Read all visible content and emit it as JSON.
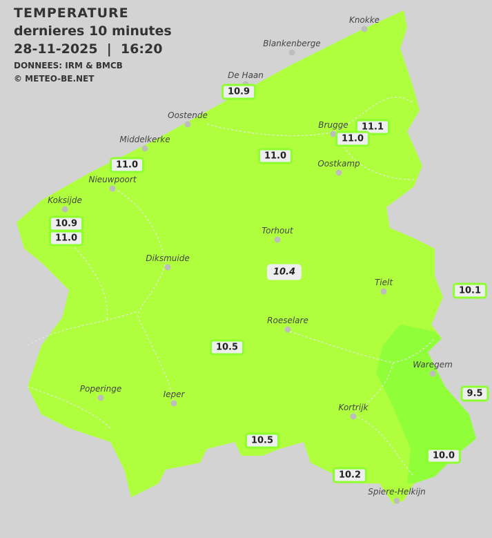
{
  "header": {
    "title": "TEMPERATURE",
    "subtitle": "dernieres 10 minutes",
    "datetime": "28-11-2025  |  16:20",
    "source": "DONNEES: IRM & BMCB",
    "copyright": "© METEO-BE.NET"
  },
  "colors": {
    "background": "#d3d3d3",
    "region_11": "#b0ff3e",
    "region_10": "#90ff3a",
    "label_border": "#8dff2f"
  },
  "cities": [
    {
      "name": "Knokke"
    },
    {
      "name": "Blankenberge"
    },
    {
      "name": "De Haan"
    },
    {
      "name": "Oostende"
    },
    {
      "name": "Brugge"
    },
    {
      "name": "Middelkerke"
    },
    {
      "name": "Oostkamp"
    },
    {
      "name": "Nieuwpoort"
    },
    {
      "name": "Koksijde"
    },
    {
      "name": "Torhout"
    },
    {
      "name": "Diksmuide"
    },
    {
      "name": "Tielt"
    },
    {
      "name": "Roeselare"
    },
    {
      "name": "Waregem"
    },
    {
      "name": "Poperinge"
    },
    {
      "name": "Ieper"
    },
    {
      "name": "Kortrijk"
    },
    {
      "name": "Spiere-Helkijn"
    }
  ],
  "readings": [
    "10.9",
    "11.1",
    "11.0",
    "11.0",
    "11.0",
    "10.9",
    "11.0",
    "10.4",
    "10.1",
    "10.5",
    "9.5",
    "10.5",
    "10.0",
    "10.2"
  ]
}
